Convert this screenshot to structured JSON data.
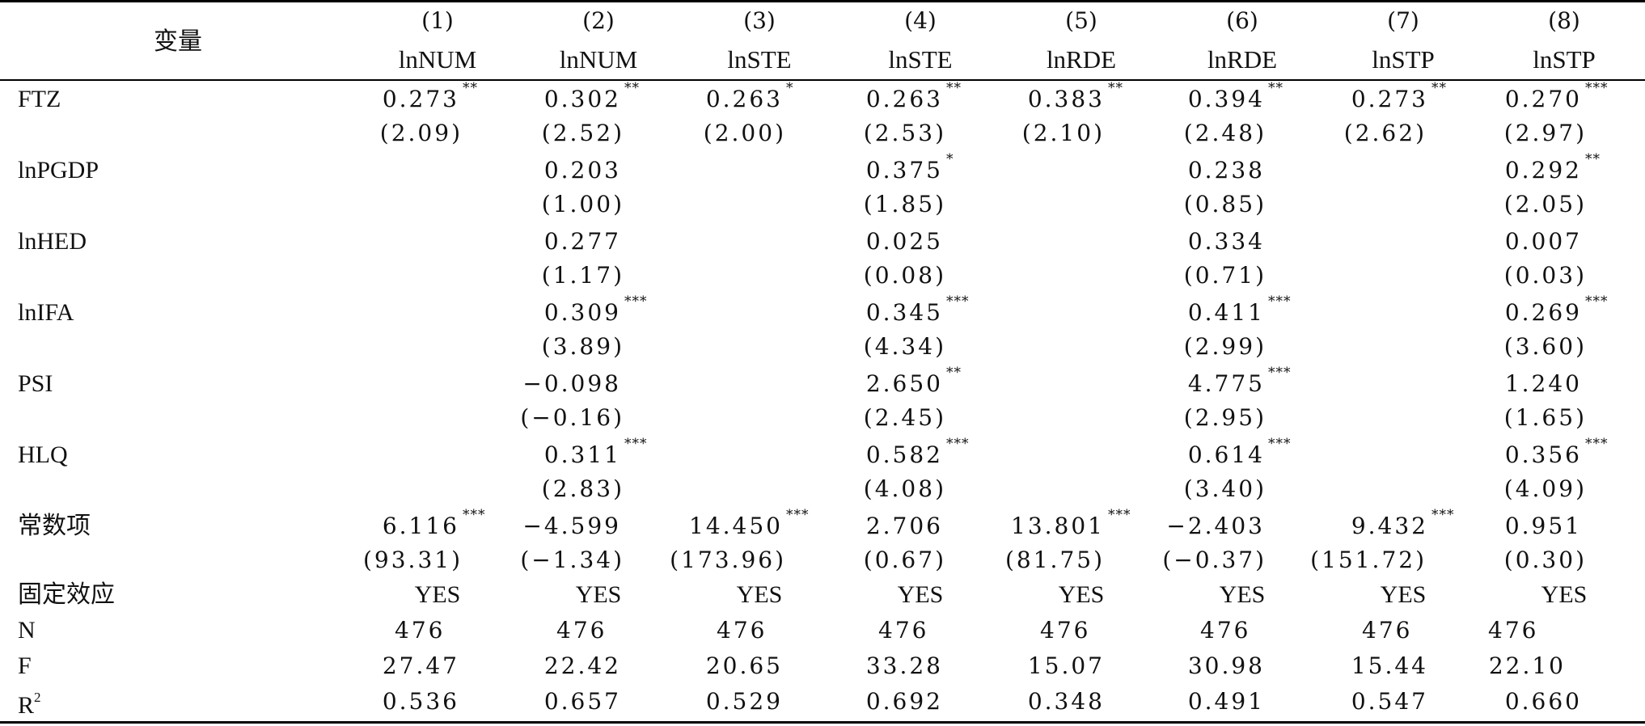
{
  "header": {
    "variable_label": "变量",
    "columns": [
      {
        "num": "(1)",
        "dep": "lnNUM"
      },
      {
        "num": "(2)",
        "dep": "lnNUM"
      },
      {
        "num": "(3)",
        "dep": "lnSTE"
      },
      {
        "num": "(4)",
        "dep": "lnSTE"
      },
      {
        "num": "(5)",
        "dep": "lnRDE"
      },
      {
        "num": "(6)",
        "dep": "lnRDE"
      },
      {
        "num": "(7)",
        "dep": "lnSTP"
      },
      {
        "num": "(8)",
        "dep": "lnSTP"
      }
    ]
  },
  "rows": [
    {
      "label": "FTZ",
      "coef": [
        "0.273",
        "0.302",
        "0.263",
        "0.263",
        "0.383",
        "0.394",
        "0.273",
        "0.270"
      ],
      "stars": [
        "**",
        "**",
        "*",
        "**",
        "**",
        "**",
        "**",
        "***"
      ],
      "t": [
        "(2.09)",
        "(2.52)",
        "(2.00)",
        "(2.53)",
        "(2.10)",
        "(2.48)",
        "(2.62)",
        "(2.97)"
      ]
    },
    {
      "label": "lnPGDP",
      "coef": [
        "",
        "0.203",
        "",
        "0.375",
        "",
        "0.238",
        "",
        "0.292"
      ],
      "stars": [
        "",
        "",
        "",
        "*",
        "",
        "",
        "",
        "**"
      ],
      "t": [
        "",
        "(1.00)",
        "",
        "(1.85)",
        "",
        "(0.85)",
        "",
        "(2.05)"
      ]
    },
    {
      "label": "lnHED",
      "coef": [
        "",
        "0.277",
        "",
        "0.025",
        "",
        "0.334",
        "",
        "0.007"
      ],
      "stars": [
        "",
        "",
        "",
        "",
        "",
        "",
        "",
        ""
      ],
      "t": [
        "",
        "(1.17)",
        "",
        "(0.08)",
        "",
        "(0.71)",
        "",
        "(0.03)"
      ]
    },
    {
      "label": "lnIFA",
      "coef": [
        "",
        "0.309",
        "",
        "0.345",
        "",
        "0.411",
        "",
        "0.269"
      ],
      "stars": [
        "",
        "***",
        "",
        "***",
        "",
        "***",
        "",
        "***"
      ],
      "t": [
        "",
        "(3.89)",
        "",
        "(4.34)",
        "",
        "(2.99)",
        "",
        "(3.60)"
      ]
    },
    {
      "label": "PSI",
      "coef": [
        "",
        "−0.098",
        "",
        "2.650",
        "",
        "4.775",
        "",
        "1.240"
      ],
      "stars": [
        "",
        "",
        "",
        "**",
        "",
        "***",
        "",
        ""
      ],
      "t": [
        "",
        "(−0.16)",
        "",
        "(2.45)",
        "",
        "(2.95)",
        "",
        "(1.65)"
      ]
    },
    {
      "label": "HLQ",
      "coef": [
        "",
        "0.311",
        "",
        "0.582",
        "",
        "0.614",
        "",
        "0.356"
      ],
      "stars": [
        "",
        "***",
        "",
        "***",
        "",
        "***",
        "",
        "***"
      ],
      "t": [
        "",
        "(2.83)",
        "",
        "(4.08)",
        "",
        "(3.40)",
        "",
        "(4.09)"
      ]
    },
    {
      "label": "常数项",
      "coef": [
        "6.116",
        "−4.599",
        "14.450",
        "2.706",
        "13.801",
        "−2.403",
        "9.432",
        "0.951"
      ],
      "stars": [
        "***",
        "",
        "***",
        "",
        "***",
        "",
        "***",
        ""
      ],
      "t": [
        "(93.31)",
        "(−1.34)",
        "(173.96)",
        "(0.67)",
        "(81.75)",
        "(−0.37)",
        "(151.72)",
        "(0.30)"
      ]
    }
  ],
  "fixed_effects": {
    "label": "固定效应",
    "values": [
      "YES",
      "YES",
      "YES",
      "YES",
      "YES",
      "YES",
      "YES",
      "YES"
    ]
  },
  "n_row": {
    "label": "N",
    "values": [
      "476",
      "476",
      "476",
      "476",
      "476",
      "476",
      "476",
      "476"
    ]
  },
  "f_row": {
    "label": "F",
    "values": [
      "27.47",
      "22.42",
      "20.65",
      "33.28",
      "15.07",
      "30.98",
      "15.44",
      "22.10"
    ]
  },
  "r2_row": {
    "label": "R",
    "label_sup": "2",
    "values": [
      "0.536",
      "0.657",
      "0.529",
      "0.692",
      "0.348",
      "0.491",
      "0.547",
      "0.660"
    ]
  }
}
